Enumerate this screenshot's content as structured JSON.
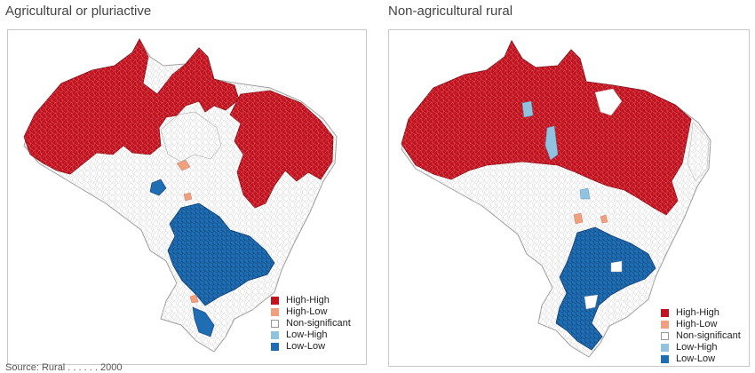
{
  "panels": [
    {
      "title": "Agricultural or pluriactive"
    },
    {
      "title": "Non-agricultural rural"
    }
  ],
  "legend": [
    {
      "label": "High-High",
      "color": "#c0121f"
    },
    {
      "label": "High-Low",
      "color": "#f0a07e"
    },
    {
      "label": "Non-significant",
      "color": "#ffffff"
    },
    {
      "label": "Low-High",
      "color": "#8fc3e0"
    },
    {
      "label": "Low-Low",
      "color": "#1f6db3"
    }
  ],
  "source": "Source: Rural . . . . . . 2000"
}
